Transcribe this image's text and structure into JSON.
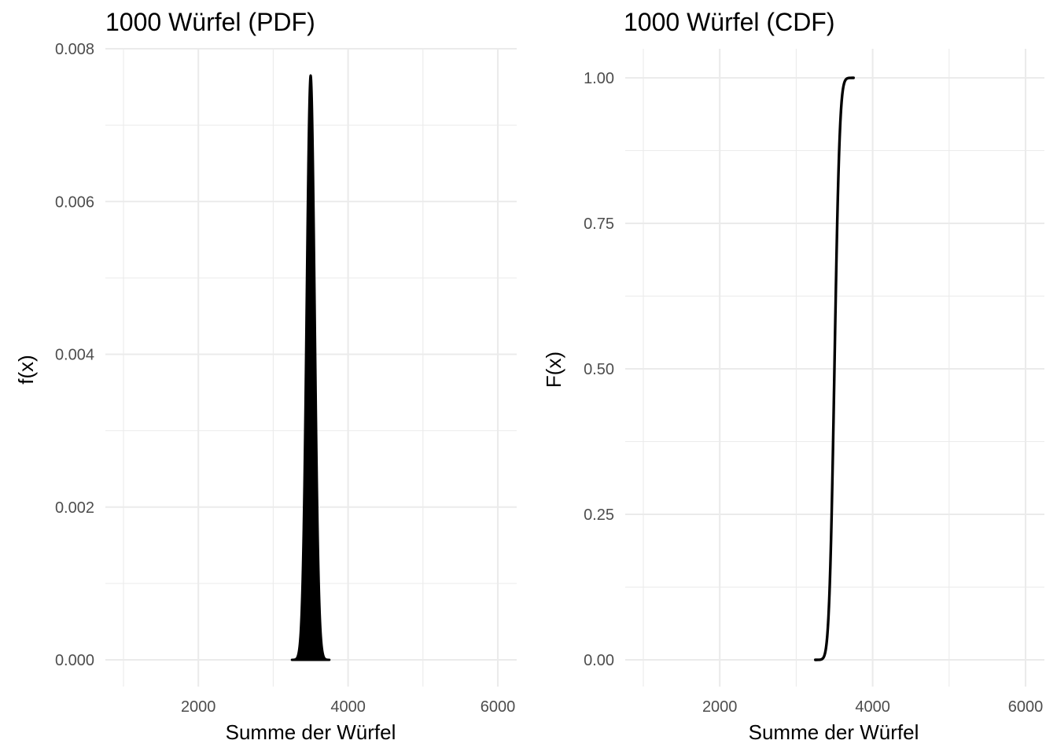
{
  "chart_data": [
    {
      "type": "area",
      "title": "1000 Würfel (PDF)",
      "xlabel": "Summe der Würfel",
      "ylabel": "f(x)",
      "xlim": [
        1000,
        6000
      ],
      "ylim": [
        0,
        0.008
      ],
      "x_ticks": [
        2000,
        4000,
        6000
      ],
      "x_tick_labels": [
        "2000",
        "4000",
        "6000"
      ],
      "y_ticks": [
        0,
        0.002,
        0.004,
        0.006,
        0.008
      ],
      "y_tick_labels": [
        "0.000",
        "0.002",
        "0.004",
        "0.006",
        "0.008"
      ],
      "grid": true,
      "series": [
        {
          "name": "PDF",
          "color": "#000000",
          "x_range": [
            3250,
            3750
          ],
          "mean": 3500,
          "sd": 54,
          "peak": 0.00765
        }
      ]
    },
    {
      "type": "line",
      "title": "1000 Würfel (CDF)",
      "xlabel": "Summe der Würfel",
      "ylabel": "F(x)",
      "xlim": [
        1000,
        6000
      ],
      "ylim": [
        0,
        1
      ],
      "x_ticks": [
        2000,
        4000,
        6000
      ],
      "x_tick_labels": [
        "2000",
        "4000",
        "6000"
      ],
      "y_ticks": [
        0,
        0.25,
        0.5,
        0.75,
        1
      ],
      "y_tick_labels": [
        "0.00",
        "0.25",
        "0.50",
        "0.75",
        "1.00"
      ],
      "grid": true,
      "series": [
        {
          "name": "CDF",
          "color": "#000000",
          "x_range": [
            3250,
            3750
          ],
          "mean": 3500,
          "sd": 54
        }
      ]
    }
  ]
}
